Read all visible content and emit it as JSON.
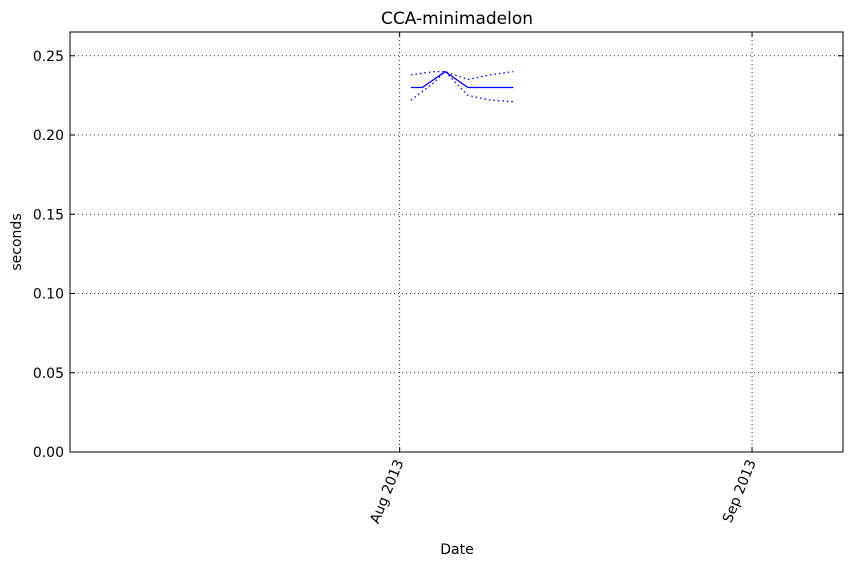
{
  "chart_data": {
    "type": "line",
    "title": "CCA-minimadelon",
    "xlabel": "Date",
    "ylabel": "seconds",
    "xlim": [
      "2013-07-03",
      "2013-09-09"
    ],
    "ylim": [
      0,
      0.265
    ],
    "yticks": [
      {
        "value": 0.0,
        "label": "0.00"
      },
      {
        "value": 0.05,
        "label": "0.05"
      },
      {
        "value": 0.1,
        "label": "0.10"
      },
      {
        "value": 0.15,
        "label": "0.15"
      },
      {
        "value": 0.2,
        "label": "0.20"
      },
      {
        "value": 0.25,
        "label": "0.25"
      }
    ],
    "xticks": [
      {
        "value": "2013-08-01",
        "label": "Aug 2013"
      },
      {
        "value": "2013-09-01",
        "label": "Sep 2013"
      }
    ],
    "grid": true,
    "series": [
      {
        "style": "solid",
        "color": "#0000ff",
        "points": [
          {
            "x": "2013-08-02",
            "y": 0.23
          },
          {
            "x": "2013-08-03",
            "y": 0.23
          },
          {
            "x": "2013-08-05",
            "y": 0.24
          },
          {
            "x": "2013-08-07",
            "y": 0.23
          },
          {
            "x": "2013-08-11",
            "y": 0.23
          }
        ]
      },
      {
        "style": "dotted",
        "color": "#0000ff",
        "points": [
          {
            "x": "2013-08-02",
            "y": 0.238
          },
          {
            "x": "2013-08-04",
            "y": 0.24
          },
          {
            "x": "2013-08-05",
            "y": 0.24
          },
          {
            "x": "2013-08-07",
            "y": 0.235
          },
          {
            "x": "2013-08-09",
            "y": 0.238
          },
          {
            "x": "2013-08-11",
            "y": 0.24
          }
        ]
      },
      {
        "style": "dotted",
        "color": "#0000ff",
        "points": [
          {
            "x": "2013-08-02",
            "y": 0.222
          },
          {
            "x": "2013-08-04",
            "y": 0.233
          },
          {
            "x": "2013-08-05",
            "y": 0.24
          },
          {
            "x": "2013-08-07",
            "y": 0.225
          },
          {
            "x": "2013-08-09",
            "y": 0.222
          },
          {
            "x": "2013-08-11",
            "y": 0.221
          }
        ]
      }
    ]
  }
}
